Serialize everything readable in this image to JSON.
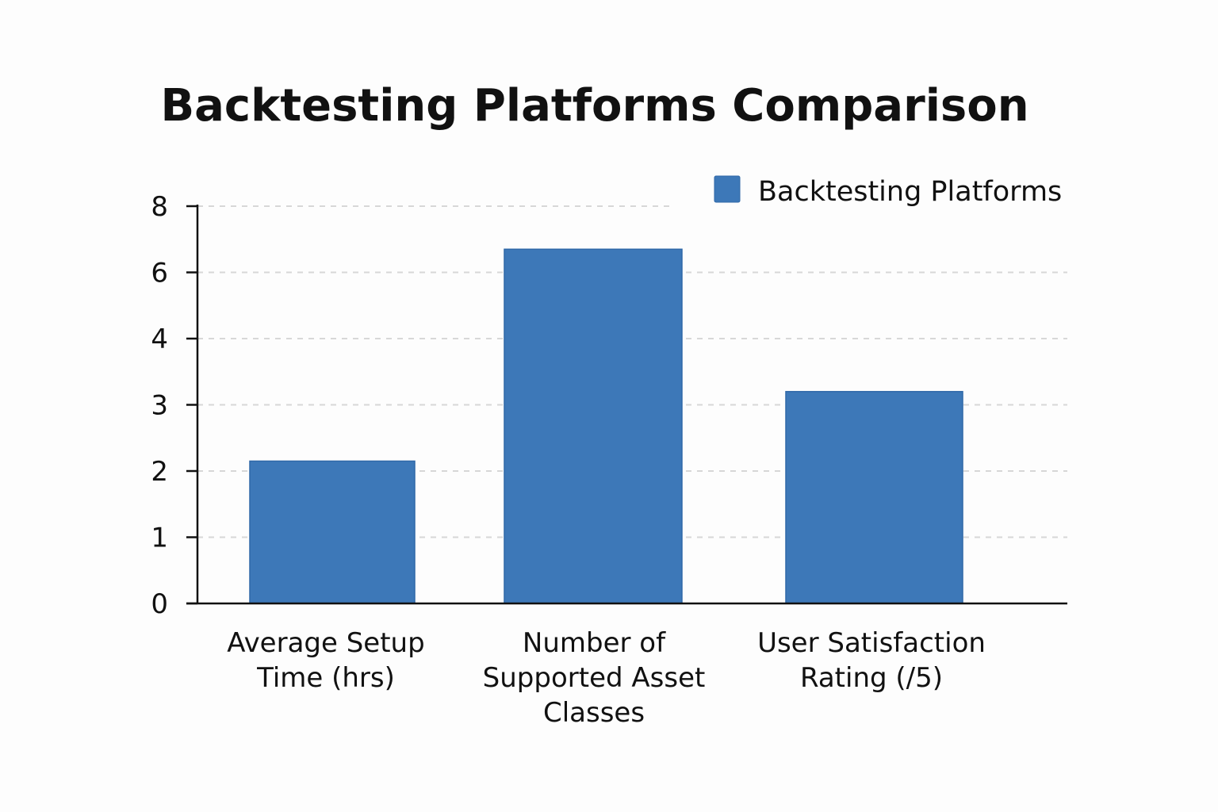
{
  "chart_data": {
    "type": "bar",
    "title": "Backtesting Platforms Comparison",
    "categories": [
      [
        "Average Setup",
        "Time (hrs)"
      ],
      [
        "Number of",
        "Supported Asset",
        "Classes"
      ],
      [
        "User Satisfaction",
        "Rating (/5)"
      ]
    ],
    "series": [
      {
        "name": "Backtesting Platforms",
        "color": "#3d78b8",
        "values": [
          2.15,
          6.7,
          3.2
        ]
      }
    ],
    "yticks": [
      0,
      1,
      2,
      3,
      4,
      6,
      8
    ],
    "xlabel": "",
    "ylabel": "",
    "grid": true,
    "legend_position": "top-right"
  }
}
